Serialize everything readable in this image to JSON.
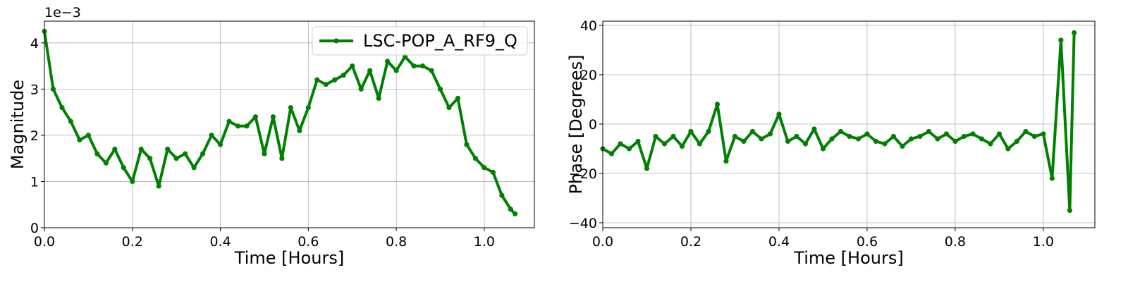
{
  "chart_data": [
    {
      "type": "line",
      "xlabel": "Time [Hours]",
      "ylabel": "Magnitude",
      "offset_text": "1e−3",
      "x": [
        0,
        0.02,
        0.04,
        0.06,
        0.08,
        0.1,
        0.12,
        0.14,
        0.16,
        0.18,
        0.2,
        0.22,
        0.24,
        0.26,
        0.28,
        0.3,
        0.32,
        0.34,
        0.36,
        0.38,
        0.4,
        0.42,
        0.44,
        0.46,
        0.48,
        0.5,
        0.52,
        0.54,
        0.56,
        0.58,
        0.6,
        0.62,
        0.64,
        0.66,
        0.68,
        0.7,
        0.72,
        0.74,
        0.76,
        0.78,
        0.8,
        0.82,
        0.84,
        0.86,
        0.88,
        0.9,
        0.92,
        0.94,
        0.96,
        0.98,
        1.0,
        1.02,
        1.04,
        1.06,
        1.07
      ],
      "series": [
        {
          "name": "LSC-POP_A_RF9_Q",
          "color": "#008000",
          "values": [
            4.25,
            3.0,
            2.6,
            2.3,
            1.9,
            2.0,
            1.6,
            1.4,
            1.7,
            1.3,
            1.0,
            1.7,
            1.5,
            0.9,
            1.7,
            1.5,
            1.6,
            1.3,
            1.6,
            2.0,
            1.8,
            2.3,
            2.2,
            2.2,
            2.4,
            1.6,
            2.4,
            1.5,
            2.6,
            2.1,
            2.6,
            3.2,
            3.1,
            3.2,
            3.3,
            3.5,
            3.0,
            3.4,
            2.8,
            3.6,
            3.4,
            3.7,
            3.5,
            3.5,
            3.4,
            3.0,
            2.6,
            2.8,
            1.8,
            1.5,
            1.3,
            1.2,
            0.7,
            0.4,
            0.3
          ]
        }
      ],
      "xlim": [
        0,
        1.114
      ],
      "ylim": [
        0,
        4.47
      ],
      "xticks": [
        {
          "value": 0,
          "label": "0.0"
        },
        {
          "value": 0.2,
          "label": "0.2"
        },
        {
          "value": 0.4,
          "label": "0.4"
        },
        {
          "value": 0.6,
          "label": "0.6"
        },
        {
          "value": 0.8,
          "label": "0.8"
        },
        {
          "value": 1.0,
          "label": "1.0"
        }
      ],
      "yticks": [
        0,
        1,
        2,
        3,
        4
      ],
      "grid": true,
      "legend": "upper right"
    },
    {
      "type": "line",
      "xlabel": "Time [Hours]",
      "ylabel": "Phase [Degrees]",
      "x": [
        0,
        0.02,
        0.04,
        0.06,
        0.08,
        0.1,
        0.12,
        0.14,
        0.16,
        0.18,
        0.2,
        0.22,
        0.24,
        0.26,
        0.28,
        0.3,
        0.32,
        0.34,
        0.36,
        0.38,
        0.4,
        0.42,
        0.44,
        0.46,
        0.48,
        0.5,
        0.52,
        0.54,
        0.56,
        0.58,
        0.6,
        0.62,
        0.64,
        0.66,
        0.68,
        0.7,
        0.72,
        0.74,
        0.76,
        0.78,
        0.8,
        0.82,
        0.84,
        0.86,
        0.88,
        0.9,
        0.92,
        0.94,
        0.96,
        0.98,
        1.0,
        1.02,
        1.04,
        1.06,
        1.07
      ],
      "series": [
        {
          "color": "#008000",
          "values": [
            -10,
            -12,
            -8,
            -10,
            -7,
            -18,
            -5,
            -8,
            -5,
            -9,
            -3,
            -8,
            -3,
            8,
            -15,
            -5,
            -7,
            -3,
            -6,
            -4,
            4,
            -7,
            -5,
            -8,
            -2,
            -10,
            -6,
            -3,
            -5,
            -6,
            -4,
            -7,
            -8,
            -5,
            -9,
            -6,
            -5,
            -3,
            -6,
            -4,
            -7,
            -5,
            -4,
            -6,
            -8,
            -4,
            -10,
            -7,
            -3,
            -5,
            -4,
            -22,
            34,
            -35,
            37
          ]
        }
      ],
      "xlim": [
        0,
        1.117
      ],
      "ylim": [
        -42,
        41.7
      ],
      "xticks": [
        {
          "value": 0,
          "label": "0.0"
        },
        {
          "value": 0.2,
          "label": "0.2"
        },
        {
          "value": 0.4,
          "label": "0.4"
        },
        {
          "value": 0.6,
          "label": "0.6"
        },
        {
          "value": 0.8,
          "label": "0.8"
        },
        {
          "value": 1.0,
          "label": "1.0"
        }
      ],
      "yticks": [
        {
          "value": -40,
          "label": "−40"
        },
        {
          "value": -20,
          "label": "−20"
        },
        0,
        20,
        40
      ],
      "grid": true
    }
  ]
}
